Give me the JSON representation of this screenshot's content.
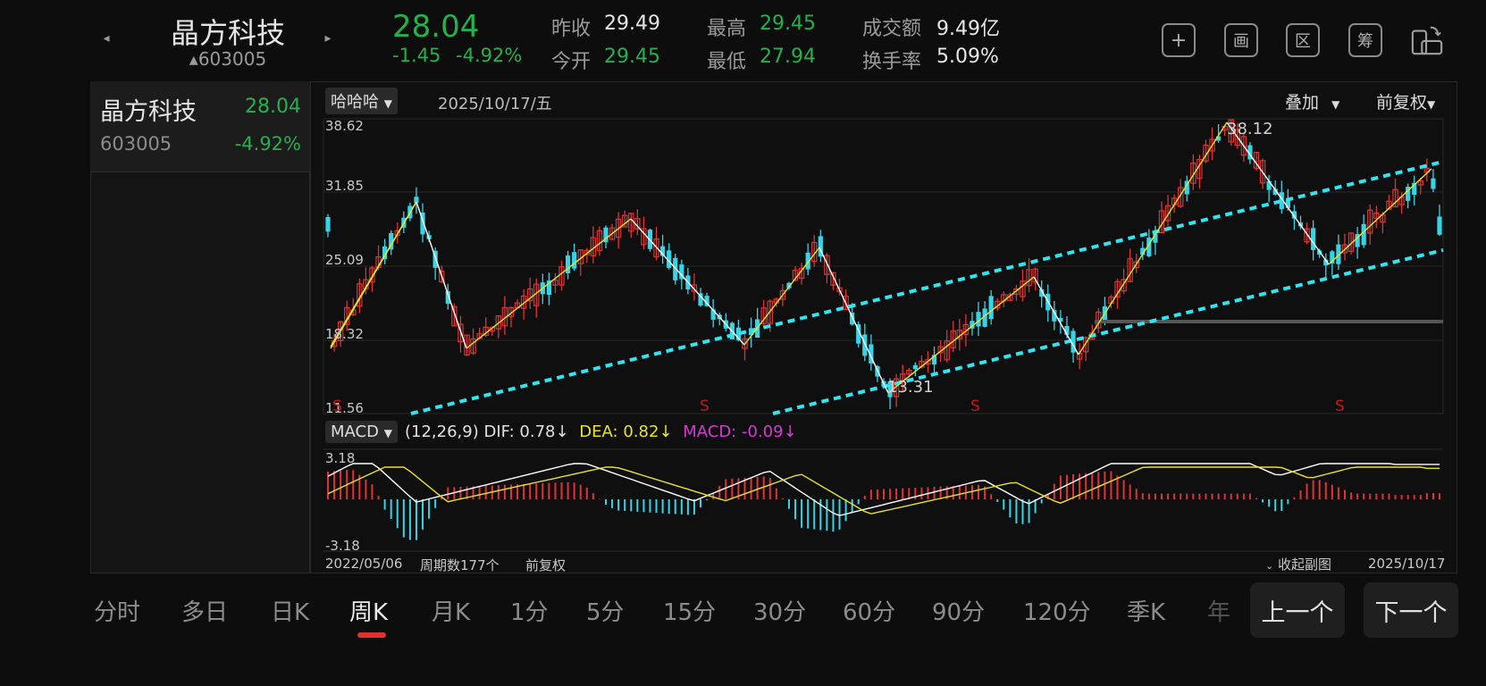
{
  "header": {
    "prev_arrow": "◂",
    "next_arrow": "▸",
    "name": "晶方科技",
    "code": "▴603005",
    "price": "28.04",
    "change": "-1.45",
    "change_pct": "-4.92%",
    "prev_close_label": "昨收",
    "prev_close": "29.49",
    "open_label": "今开",
    "open": "29.45",
    "high_label": "最高",
    "high": "29.45",
    "low_label": "最低",
    "low": "27.94",
    "turnover_label": "成交额",
    "turnover": "9.49亿",
    "turnover_rate_label": "换手率",
    "turnover_rate": "5.09%",
    "tools": [
      {
        "icon": "plus-icon",
        "glyph": "+"
      },
      {
        "icon": "draw-icon",
        "glyph": "画"
      },
      {
        "icon": "range-icon",
        "glyph": "区"
      },
      {
        "icon": "chips-icon",
        "glyph": "筹"
      },
      {
        "icon": "rotate-screen-icon",
        "glyph": "⟳"
      }
    ]
  },
  "sidebar": {
    "name": "晶方科技",
    "price": "28.04",
    "code": "603005",
    "change_pct": "-4.92%"
  },
  "chart": {
    "indicator_dropdown": "哈哈哈",
    "date": "2025/10/17/五",
    "overlay_label": "叠加",
    "adjust_label": "前复权",
    "price_axis": [
      "38.62",
      "31.85",
      "25.09",
      "18.32",
      "11.56"
    ],
    "annot_high": "38.12",
    "annot_low": "13.31",
    "signal_marks": [
      "S",
      "S",
      "S",
      "S"
    ],
    "macd_dropdown": "MACD",
    "macd_params": "(12,26,9)",
    "dif_label": "DIF: 0.78↓",
    "dea_label": "DEA: 0.82↓",
    "macd_label": "MACD: -0.09↓",
    "macd_axis": [
      "3.18",
      "-3.18"
    ],
    "start_date": "2022/05/06",
    "period_count": "周期数177个",
    "adjust_footer": "前复权",
    "collapse_label": "收起副图",
    "end_date": "2025/10/17"
  },
  "colors": {
    "up": "#e03333",
    "down": "#36d4e6",
    "green": "#22b14c",
    "channel": "#2ee6f0",
    "yellow": "#e8e22a",
    "magenta": "#d23ad2"
  },
  "tabs": [
    "分时",
    "多日",
    "日K",
    "周K",
    "月K",
    "1分",
    "5分",
    "15分",
    "30分",
    "60分",
    "90分",
    "120分",
    "季K",
    "年"
  ],
  "active_tab": "周K",
  "nav": {
    "prev": "上一个",
    "next": "下一个"
  }
}
